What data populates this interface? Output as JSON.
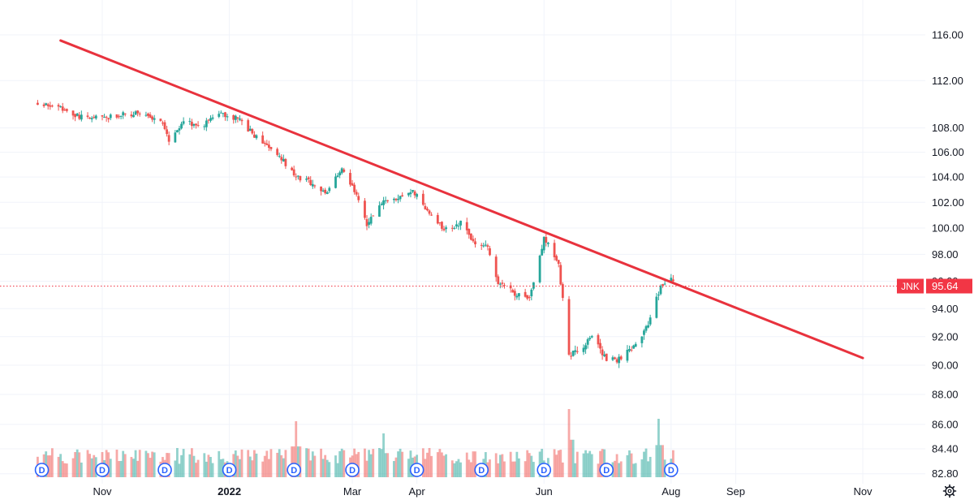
{
  "chart_data": {
    "type": "candlestick",
    "symbol": "JNK",
    "last_price": 95.64,
    "last_price_label": "95.64",
    "y_axis": {
      "ticks": [
        116.0,
        112.0,
        108.0,
        106.0,
        104.0,
        102.0,
        100.0,
        98.0,
        96.0,
        94.0,
        92.0,
        90.0,
        88.0,
        86.0,
        84.4,
        82.8
      ],
      "tick_labels": [
        "116.00",
        "112.00",
        "108.00",
        "106.00",
        "104.00",
        "102.00",
        "100.00",
        "98.00",
        "96.00",
        "94.00",
        "92.00",
        "90.00",
        "88.00",
        "86.00",
        "84.40",
        "82.80"
      ],
      "scale": "log"
    },
    "x_axis": {
      "labels": [
        {
          "text": "Nov",
          "date": "2021-11-01"
        },
        {
          "text": "2022",
          "date": "2022-01-01"
        },
        {
          "text": "Mar",
          "date": "2022-03-01"
        },
        {
          "text": "Apr",
          "date": "2022-04-01"
        },
        {
          "text": "Jun",
          "date": "2022-06-01"
        },
        {
          "text": "Aug",
          "date": "2022-08-01"
        },
        {
          "text": "Sep",
          "date": "2022-09-01"
        },
        {
          "text": "Nov",
          "date": "2022-11-01"
        }
      ]
    },
    "price_path": [
      [
        "2021-10-01",
        110.0
      ],
      [
        "2021-10-12",
        109.6
      ],
      [
        "2021-10-22",
        108.9
      ],
      [
        "2021-11-01",
        108.8
      ],
      [
        "2021-11-10",
        109.1
      ],
      [
        "2021-11-20",
        109.2
      ],
      [
        "2021-11-30",
        108.3
      ],
      [
        "2021-12-03",
        106.9
      ],
      [
        "2021-12-10",
        108.4
      ],
      [
        "2021-12-20",
        108.3
      ],
      [
        "2021-12-28",
        109.2
      ],
      [
        "2022-01-05",
        108.8
      ],
      [
        "2022-01-14",
        107.2
      ],
      [
        "2022-01-24",
        105.8
      ],
      [
        "2022-02-02",
        104.1
      ],
      [
        "2022-02-10",
        103.5
      ],
      [
        "2022-02-16",
        102.7
      ],
      [
        "2022-02-24",
        104.5
      ],
      [
        "2022-03-01",
        103.3
      ],
      [
        "2022-03-08",
        100.2
      ],
      [
        "2022-03-15",
        102.0
      ],
      [
        "2022-03-22",
        102.3
      ],
      [
        "2022-03-30",
        102.9
      ],
      [
        "2022-04-07",
        101.1
      ],
      [
        "2022-04-14",
        99.9
      ],
      [
        "2022-04-22",
        100.4
      ],
      [
        "2022-04-29",
        98.9
      ],
      [
        "2022-05-05",
        98.5
      ],
      [
        "2022-05-10",
        95.9
      ],
      [
        "2022-05-17",
        95.2
      ],
      [
        "2022-05-25",
        94.6
      ],
      [
        "2022-06-01",
        99.3
      ],
      [
        "2022-06-08",
        97.2
      ],
      [
        "2022-06-13",
        90.7
      ],
      [
        "2022-06-17",
        90.9
      ],
      [
        "2022-06-24",
        91.9
      ],
      [
        "2022-07-01",
        90.5
      ],
      [
        "2022-07-07",
        90.4
      ],
      [
        "2022-07-14",
        91.2
      ],
      [
        "2022-07-21",
        92.8
      ],
      [
        "2022-07-27",
        95.6
      ],
      [
        "2022-08-02",
        96.2
      ]
    ],
    "trendline": {
      "from": [
        "2021-10-12",
        115.5
      ],
      "to": [
        "2022-11-01",
        90.5
      ]
    },
    "dividend_marker_label": "D",
    "dividend_dates": [
      "2021-10-03",
      "2021-11-01",
      "2021-12-01",
      "2022-01-01",
      "2022-02-01",
      "2022-03-01",
      "2022-04-01",
      "2022-05-02",
      "2022-06-01",
      "2022-07-01",
      "2022-08-01"
    ],
    "volume_spikes": [
      [
        "2022-02-02",
        2.3
      ],
      [
        "2022-03-16",
        1.8
      ],
      [
        "2022-06-13",
        2.8
      ],
      [
        "2022-07-26",
        2.4
      ]
    ],
    "colors": {
      "up": "#26a69a",
      "down": "#ef5350",
      "trendline": "#e8323d",
      "price_line": "#f23645",
      "grid": "#f0f3fa",
      "marker": "#2962ff"
    }
  },
  "toolbar": {
    "settings_icon": "gear-icon"
  }
}
